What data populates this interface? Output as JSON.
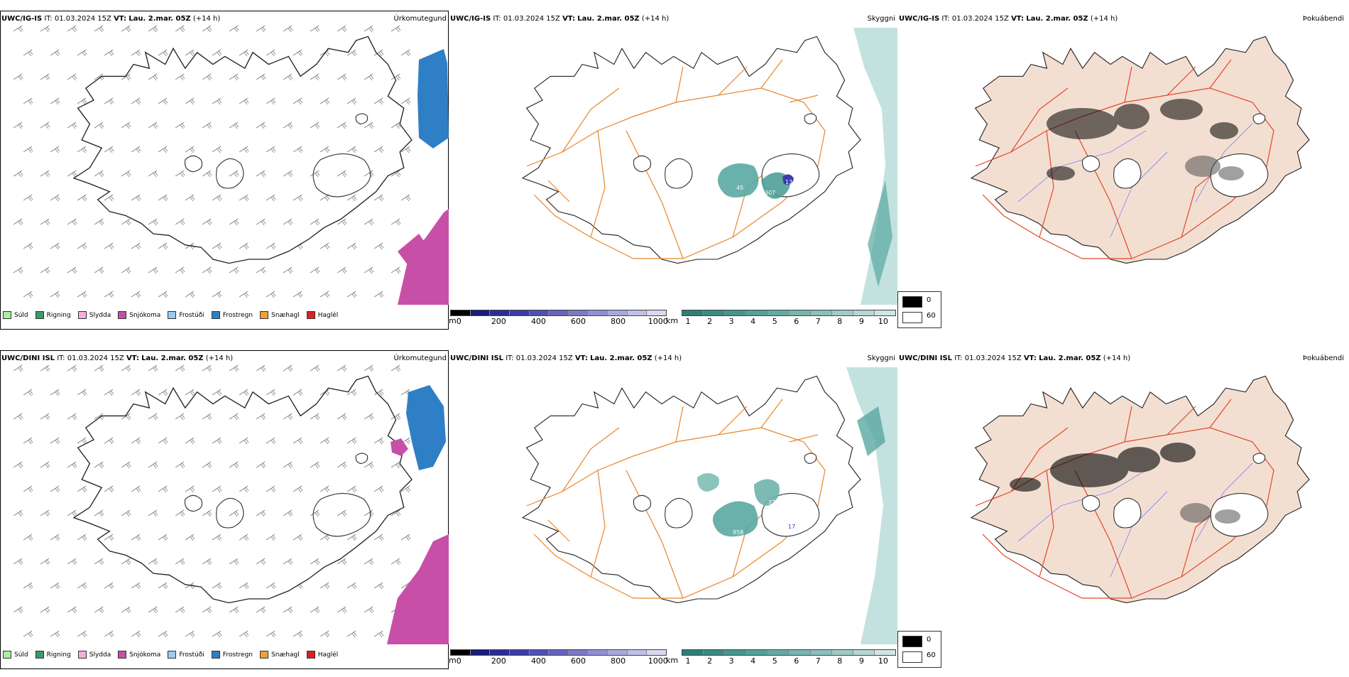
{
  "colors": {
    "outline": "#222222",
    "roads": "#e8862a",
    "roads_red": "#e0482a",
    "land_fog": "#f3dfd2",
    "rivers": "#7f8ff0",
    "frostregn": "#2f7fc6",
    "snjokoma": "#c84fa8",
    "cloud_teal": "#3f9b94",
    "cloud_dark": "#3b3ba8"
  },
  "rows": [
    {
      "model": "UWC/IG-IS",
      "it_label": "IT:",
      "it_value": "01.03.2024 15Z",
      "vt_label": "VT:",
      "vt_value": "Lau. 2.mar. 05Z",
      "lead": "(+14 h)",
      "cloud_values": [
        "45",
        "307",
        "13"
      ]
    },
    {
      "model": "UWC/DINI ISL",
      "it_label": "IT:",
      "it_value": "01.03.2024 15Z",
      "vt_label": "VT:",
      "vt_value": "Lau. 2.mar. 05Z",
      "lead": "(+14 h)",
      "cloud_values": [
        "958",
        "72",
        "17"
      ]
    }
  ],
  "panel_titles": {
    "precip": "Úrkomutegund",
    "cloud": "Skyggni",
    "fog": "Þokuábendi"
  },
  "precip_legend": [
    {
      "label": "Súld",
      "color": "#a8f0a0"
    },
    {
      "label": "Rigning",
      "color": "#3a9b6a"
    },
    {
      "label": "Slydda",
      "color": "#f4b0d8"
    },
    {
      "label": "Snjókoma",
      "color": "#c84fa8"
    },
    {
      "label": "Frostúði",
      "color": "#9fc8f0"
    },
    {
      "label": "Frostregn",
      "color": "#2f7fc6"
    },
    {
      "label": "Snæhagl",
      "color": "#f0a030"
    },
    {
      "label": "Haglél",
      "color": "#e02020"
    }
  ],
  "height_bar": {
    "unit": "m",
    "ticks": [
      "0",
      "200",
      "400",
      "600",
      "800",
      "1000"
    ],
    "colors": [
      "#000000",
      "#1b1b7a",
      "#2c2c96",
      "#3c3ca8",
      "#5050b4",
      "#6464c0",
      "#7a7ac8",
      "#9090d2",
      "#a8a8dc",
      "#c0c0e6",
      "#d8d8f0"
    ]
  },
  "vis_bar": {
    "unit": "km",
    "ticks": [
      "1",
      "2",
      "3",
      "4",
      "5",
      "6",
      "7",
      "8",
      "9",
      "10"
    ],
    "colors": [
      "#2f7f78",
      "#3a8a84",
      "#45958f",
      "#52a09a",
      "#62aaa5",
      "#74b5b0",
      "#88c0bc",
      "#9ecbc8",
      "#b6d7d4",
      "#d0e6e4"
    ]
  },
  "fog_legend": {
    "items": [
      {
        "label": "0",
        "color": "#000000"
      },
      {
        "label": "60",
        "color": "#ffffff"
      }
    ]
  }
}
